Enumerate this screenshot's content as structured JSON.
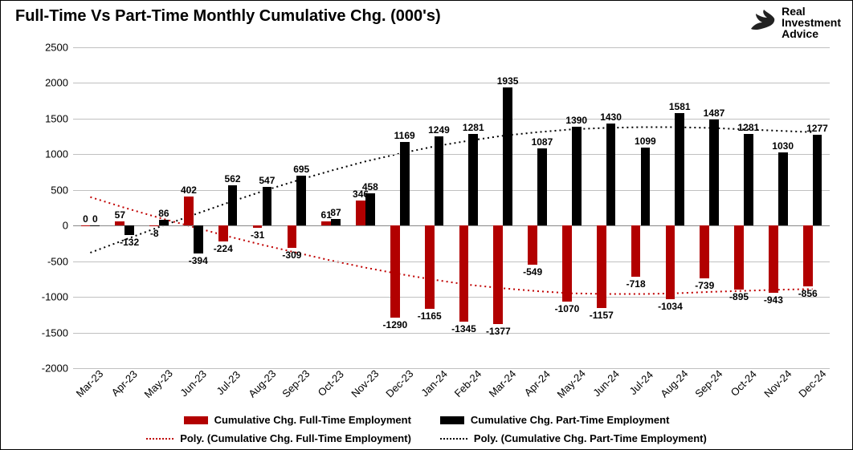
{
  "title": "Full-Time Vs Part-Time Monthly Cumulative Chg. (000's)",
  "brand": {
    "line1": "Real",
    "line2": "Investment",
    "line3": "Advice"
  },
  "chart": {
    "type": "bar-grouped",
    "ymin": -2000,
    "ymax": 2500,
    "ytick_step": 500,
    "background_color": "#ffffff",
    "grid_color": "#c0c0c0",
    "categories": [
      "Mar-23",
      "Apr-23",
      "May-23",
      "Jun-23",
      "Jul-23",
      "Aug-23",
      "Sep-23",
      "Oct-23",
      "Nov-23",
      "Dec-23",
      "Jan-24",
      "Feb-24",
      "Mar-24",
      "Apr-24",
      "May-24",
      "Jun-24",
      "Jul-24",
      "Aug-24",
      "Sep-24",
      "Oct-24",
      "Nov-24",
      "Dec-24"
    ],
    "series": [
      {
        "name": "Cumulative Chg. Full-Time Employment",
        "color": "#b20000",
        "values": [
          0,
          57,
          -8,
          402,
          -224,
          -31,
          -309,
          61,
          346,
          -1290,
          -1165,
          -1345,
          -1377,
          -549,
          -1070,
          -1157,
          -718,
          -1034,
          -739,
          -895,
          -943,
          -856
        ]
      },
      {
        "name": "Cumulative Chg. Part-Time Employment",
        "color": "#000000",
        "values": [
          0,
          -132,
          86,
          -394,
          562,
          547,
          695,
          87,
          458,
          1169,
          1249,
          1281,
          1935,
          1087,
          1390,
          1430,
          1099,
          1581,
          1487,
          1281,
          1030,
          1277
        ]
      }
    ],
    "trend": [
      {
        "name": "Poly. (Cumulative Chg. Full-Time Employment)",
        "color": "#c00000",
        "points": [
          400,
          250,
          110,
          -20,
          -150,
          -270,
          -380,
          -490,
          -590,
          -680,
          -760,
          -830,
          -880,
          -920,
          -950,
          -960,
          -960,
          -950,
          -930,
          -915,
          -900,
          -890
        ]
      },
      {
        "name": "Poly. (Cumulative Chg. Part-Time Employment)",
        "color": "#000000",
        "points": [
          -380,
          -200,
          -20,
          150,
          320,
          480,
          630,
          770,
          900,
          1010,
          1110,
          1190,
          1260,
          1310,
          1350,
          1370,
          1380,
          1380,
          1370,
          1350,
          1330,
          1310
        ]
      }
    ],
    "bar_cluster_width": 0.55,
    "label_fontsize": 12,
    "title_fontsize": 20
  },
  "legend": {
    "s1": "Cumulative Chg. Full-Time Employment",
    "s2": "Cumulative Chg. Part-Time Employment",
    "t1": "Poly. (Cumulative Chg. Full-Time Employment)",
    "t2": "Poly. (Cumulative Chg. Part-Time Employment)"
  }
}
